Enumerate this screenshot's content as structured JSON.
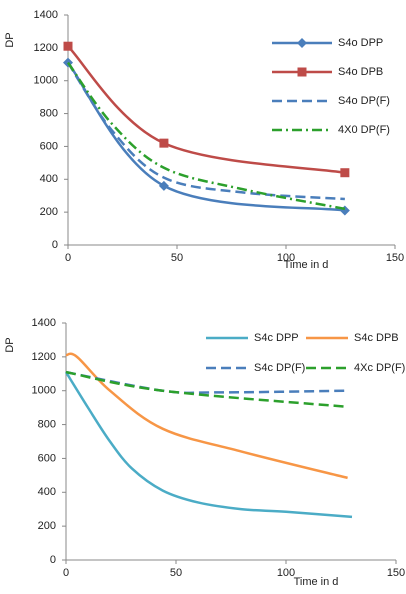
{
  "chart_data": [
    {
      "type": "line",
      "x_label": "Time in d",
      "y_label": "DP",
      "xlim": [
        0,
        150
      ],
      "ylim": [
        0,
        1400
      ],
      "xticks": [
        0,
        50,
        100,
        150
      ],
      "yticks": [
        0,
        200,
        400,
        600,
        800,
        1000,
        1200,
        1400
      ],
      "legend": "right",
      "series": [
        {
          "name": "S4o DPP",
          "color": "#4a7ebb",
          "dash": "solid",
          "marker": "diamond",
          "x": [
            0,
            44,
            127
          ],
          "values": [
            1110,
            360,
            210
          ]
        },
        {
          "name": "S4o DPB",
          "color": "#be4b48",
          "dash": "solid",
          "marker": "square",
          "x": [
            0,
            44,
            127
          ],
          "values": [
            1210,
            620,
            440
          ]
        },
        {
          "name": "S4o DP(F)",
          "color": "#4a7ebb",
          "dash": "dash",
          "x": [
            0,
            20,
            44,
            80,
            127
          ],
          "values": [
            1110,
            700,
            410,
            320,
            280
          ]
        },
        {
          "name": "4X0 DP(F)",
          "color": "#2ca02c",
          "dash": "dashdot",
          "x": [
            0,
            20,
            44,
            80,
            127
          ],
          "values": [
            1110,
            740,
            470,
            340,
            220
          ]
        }
      ]
    },
    {
      "type": "line",
      "x_label": "Time in d",
      "y_label": "DP",
      "xlim": [
        0,
        150
      ],
      "ylim": [
        0,
        1400
      ],
      "xticks": [
        0,
        50,
        100,
        150
      ],
      "yticks": [
        0,
        200,
        400,
        600,
        800,
        1000,
        1200,
        1400
      ],
      "legend": "top",
      "series": [
        {
          "name": "S4c DPP",
          "color": "#4bacc6",
          "dash": "solid",
          "x": [
            0,
            10,
            20,
            30,
            44,
            60,
            80,
            100,
            130
          ],
          "values": [
            1110,
            900,
            700,
            540,
            410,
            340,
            300,
            285,
            255
          ]
        },
        {
          "name": "S4c DPB",
          "color": "#f79646",
          "dash": "solid",
          "x": [
            0,
            5,
            20,
            44,
            80,
            128
          ],
          "values": [
            1210,
            1200,
            1000,
            775,
            640,
            485
          ]
        },
        {
          "name": "S4c DP(F)",
          "color": "#4a7ebb",
          "dash": "dash",
          "x": [
            0,
            44,
            70,
            128
          ],
          "values": [
            1110,
            1000,
            990,
            1000
          ]
        },
        {
          "name": "4Xc DP(F)",
          "color": "#2ca02c",
          "dash": "dash",
          "x": [
            0,
            44,
            128
          ],
          "values": [
            1110,
            1000,
            905
          ]
        }
      ]
    }
  ]
}
